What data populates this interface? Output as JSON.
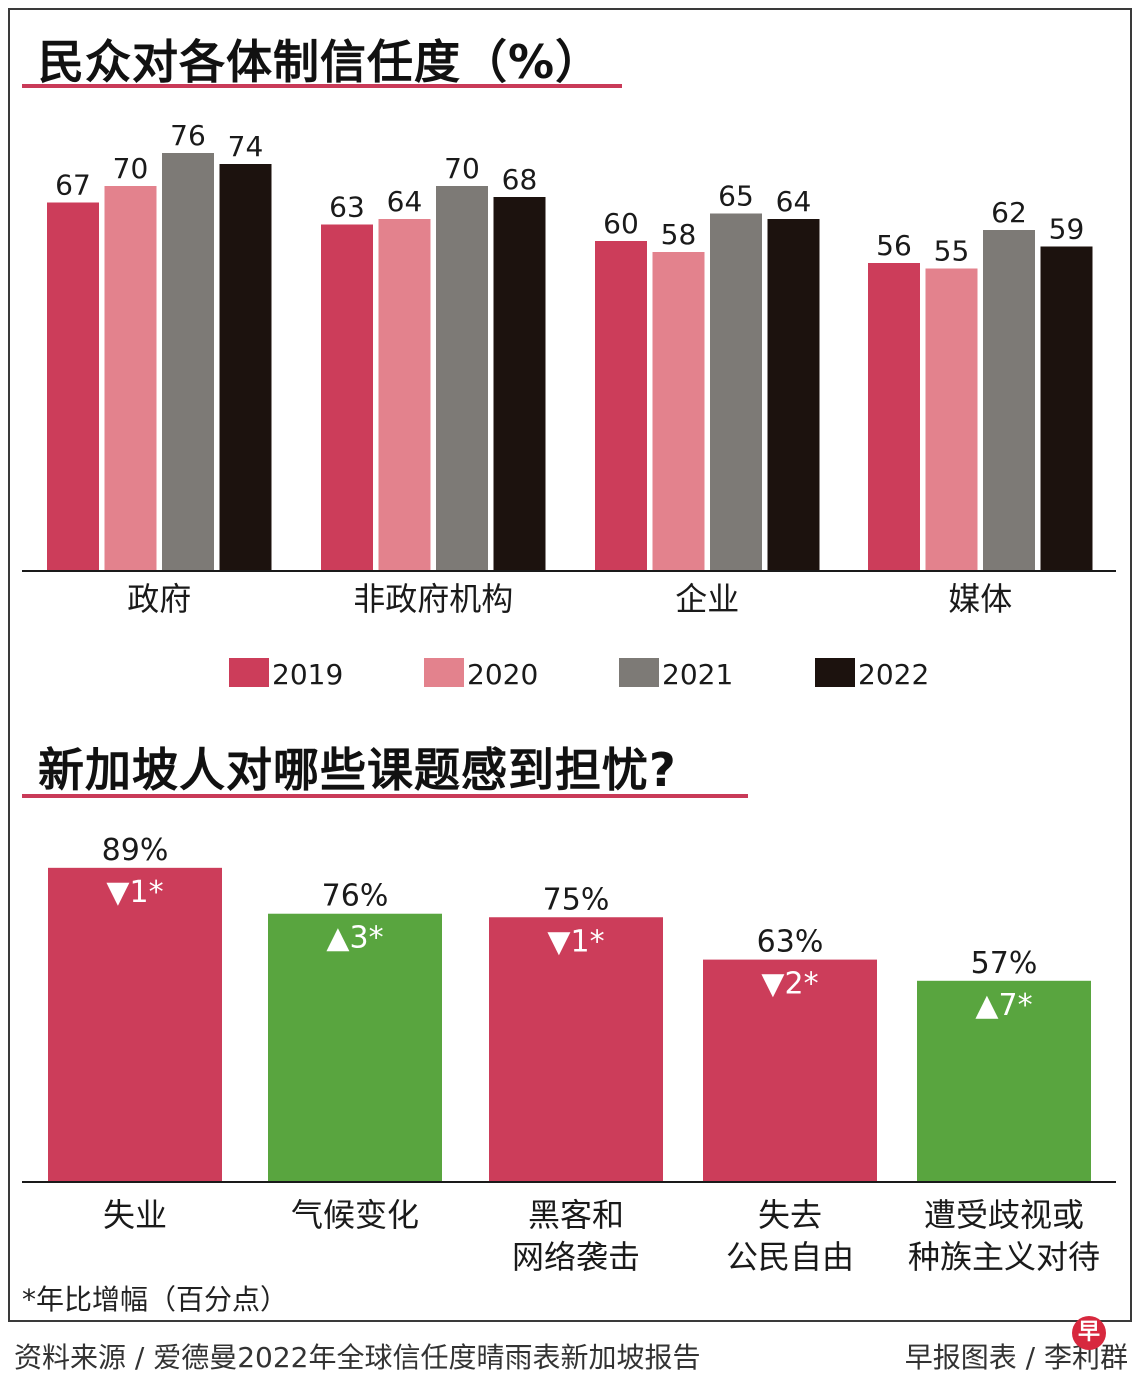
{
  "colors": {
    "s2019": "#cc3d5a",
    "s2020": "#e3828d",
    "s2021": "#7d7a76",
    "s2022": "#1c120e",
    "worry_down": "#cc3d5a",
    "worry_up": "#59a53f",
    "underline": "#c93a58"
  },
  "chart1_title": "民众对各体制信任度（%）",
  "chart2_title": "新加坡人对哪些课题感到担忧?",
  "footnote": "*年比增幅（百分点）",
  "source": "资料来源 / 爱德曼2022年全球信任度晴雨表新加坡报告",
  "credit": "早报图表 / 李利群",
  "logo_char": "早",
  "chart_data": [
    {
      "type": "bar",
      "title": "民众对各体制信任度（%）",
      "categories": [
        "政府",
        "非政府机构",
        "企业",
        "媒体"
      ],
      "series": [
        {
          "name": "2019",
          "values": [
            67,
            63,
            60,
            56
          ]
        },
        {
          "name": "2020",
          "values": [
            70,
            64,
            58,
            55
          ]
        },
        {
          "name": "2021",
          "values": [
            76,
            70,
            65,
            62
          ]
        },
        {
          "name": "2022",
          "values": [
            74,
            68,
            64,
            59
          ]
        }
      ],
      "ylim": [
        0,
        100
      ],
      "legend": "bottom",
      "grid": false
    },
    {
      "type": "bar",
      "title": "新加坡人对哪些课题感到担忧?",
      "categories": [
        [
          "失业"
        ],
        [
          "气候变化"
        ],
        [
          "黑客和",
          "网络袭击"
        ],
        [
          "失去",
          "公民自由"
        ],
        [
          "遭受歧视或",
          "种族主义对待"
        ]
      ],
      "values": [
        89,
        76,
        75,
        63,
        57
      ],
      "value_labels": [
        "89%",
        "76%",
        "75%",
        "63%",
        "57%"
      ],
      "change_labels": [
        "▼1*",
        "▲3*",
        "▼1*",
        "▼2*",
        "▲7*"
      ],
      "change_direction": [
        "down",
        "up",
        "down",
        "down",
        "up"
      ],
      "ylim": [
        0,
        100
      ],
      "grid": false
    }
  ]
}
